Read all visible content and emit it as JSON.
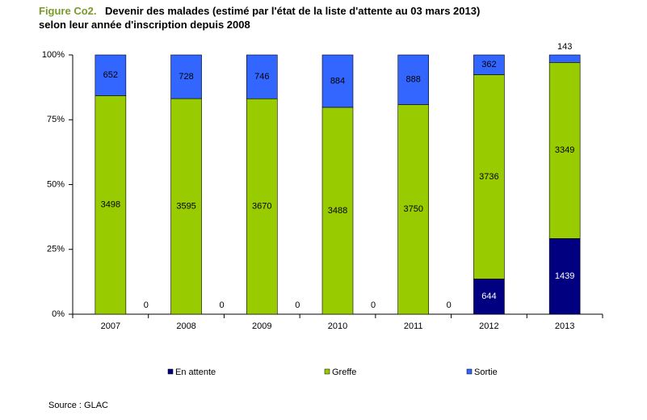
{
  "chart_data": {
    "type": "bar",
    "stacking": "percent",
    "title_prefix": "Figure Co2.",
    "title": "Devenir des malades (estimé par l'état de la liste d'attente au 03 mars 2013)",
    "subtitle": "selon leur année d'inscription depuis 2008",
    "categories": [
      "2007",
      "2008",
      "2009",
      "2010",
      "2011",
      "2012",
      "2013"
    ],
    "series": [
      {
        "name": "En attente",
        "color": "#000080",
        "values": [
          0,
          0,
          0,
          0,
          0,
          644,
          1439
        ]
      },
      {
        "name": "Greffe",
        "color": "#99cc00",
        "values": [
          3498,
          3595,
          3670,
          3488,
          3750,
          3736,
          3349
        ]
      },
      {
        "name": "Sortie",
        "color": "#3366ff",
        "values": [
          652,
          728,
          746,
          884,
          888,
          362,
          143
        ]
      }
    ],
    "ylim": [
      0,
      100
    ],
    "yticks": [
      {
        "value": 0,
        "label": "0%"
      },
      {
        "value": 25,
        "label": "25%"
      },
      {
        "value": 50,
        "label": "50%"
      },
      {
        "value": 75,
        "label": "75%"
      },
      {
        "value": 100,
        "label": "100%"
      }
    ],
    "legend": "bottom",
    "source": "Source : GLAC"
  }
}
